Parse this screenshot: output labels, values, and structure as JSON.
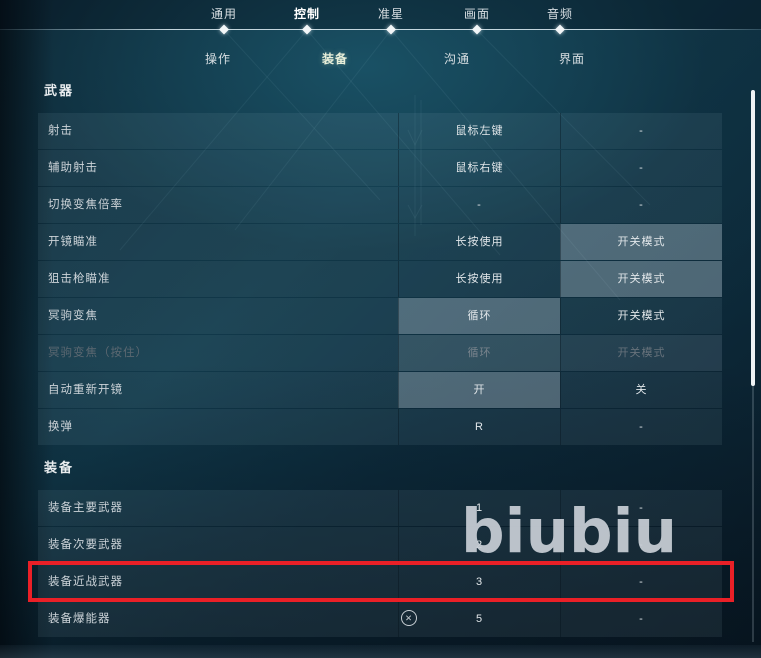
{
  "header": {
    "top_tabs": [
      {
        "name": "general",
        "label": "通用",
        "active": false
      },
      {
        "name": "controls",
        "label": "控制",
        "active": true
      },
      {
        "name": "crosshair",
        "label": "准星",
        "active": false
      },
      {
        "name": "video",
        "label": "画面",
        "active": false
      },
      {
        "name": "audio",
        "label": "音频",
        "active": false
      }
    ],
    "sub_tabs": [
      {
        "name": "actions",
        "label": "操作",
        "active": false
      },
      {
        "name": "equipment",
        "label": "装备",
        "active": true
      },
      {
        "name": "communication",
        "label": "沟通",
        "active": false
      },
      {
        "name": "interface",
        "label": "界面",
        "active": false
      }
    ]
  },
  "sections": [
    {
      "title": "武器",
      "rows": [
        {
          "label": "射击",
          "mid": {
            "text": "鼠标左键"
          },
          "right": {
            "text": "-"
          }
        },
        {
          "label": "辅助射击",
          "mid": {
            "text": "鼠标右键"
          },
          "right": {
            "text": "-"
          }
        },
        {
          "label": "切换变焦倍率",
          "mid": {
            "text": "-"
          },
          "right": {
            "text": "-"
          }
        },
        {
          "label": "开镜瞄准",
          "mid": {
            "text": "长按使用"
          },
          "right": {
            "text": "开关模式",
            "selected": true
          }
        },
        {
          "label": "狙击枪瞄准",
          "mid": {
            "text": "长按使用"
          },
          "right": {
            "text": "开关模式",
            "selected": true
          }
        },
        {
          "label": "冥驹变焦",
          "mid": {
            "text": "循环",
            "selected": true
          },
          "right": {
            "text": "开关模式"
          }
        },
        {
          "label": "冥驹变焦（按住）",
          "disabled": true,
          "mid": {
            "text": "循环",
            "selected": true
          },
          "right": {
            "text": "开关模式"
          }
        },
        {
          "label": "自动重新开镜",
          "mid": {
            "text": "开",
            "selected": true
          },
          "right": {
            "text": "关"
          }
        },
        {
          "label": "换弹",
          "mid": {
            "text": "R"
          },
          "right": {
            "text": "-"
          }
        }
      ]
    },
    {
      "title": "装备",
      "rows": [
        {
          "label": "装备主要武器",
          "mid": {
            "text": "1"
          },
          "right": {
            "text": "-"
          }
        },
        {
          "label": "装备次要武器",
          "mid": {
            "text": "2"
          },
          "right": {
            "text": "-"
          }
        },
        {
          "label": "装备近战武器",
          "highlighted": true,
          "mid": {
            "text": "3"
          },
          "right": {
            "text": "-"
          }
        },
        {
          "label": "装备爆能器",
          "icon": "circle-x-icon",
          "icon_glyph": "✕",
          "mid": {
            "text": "5"
          },
          "right": {
            "text": "-"
          }
        }
      ]
    }
  ],
  "watermark": {
    "text": "biubiu"
  },
  "colors": {
    "annotation_red": "#ea2027",
    "selected_cell": "#58656e",
    "active_subtab_tint": "#e8efda",
    "background_teal": "#113a4c"
  }
}
